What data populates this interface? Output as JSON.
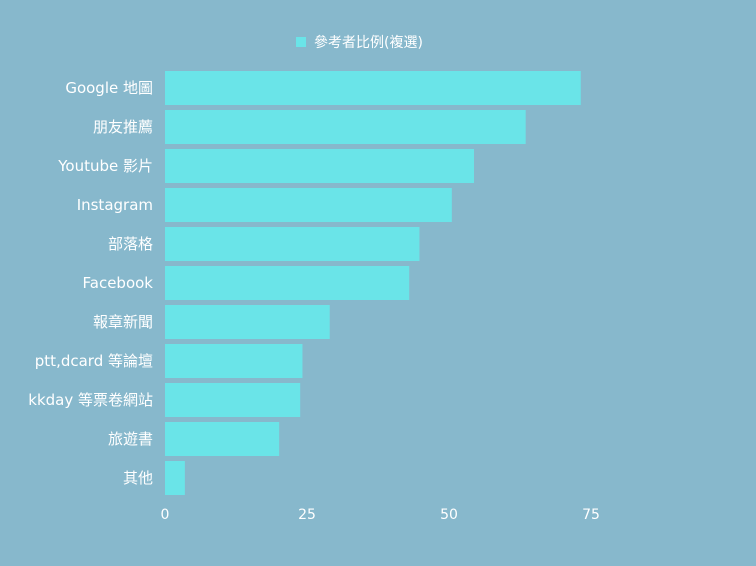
{
  "chart_data": {
    "type": "bar",
    "orientation": "horizontal",
    "categories": [
      "Google 地圖",
      "朋友推薦",
      "Youtube 影片",
      "Instagram",
      "部落格",
      "Facebook",
      "報章新聞",
      "ptt,dcard 等論壇",
      "kkday 等票卷網站",
      "旅遊書",
      "其他"
    ],
    "series": [
      {
        "name": "參考者比例(複選)",
        "values": [
          73.2,
          63.5,
          54.4,
          50.5,
          44.8,
          43.0,
          29.0,
          24.2,
          23.8,
          20.1,
          3.5
        ]
      }
    ],
    "xlim": [
      0,
      100
    ],
    "xticks": [
      "0",
      "25",
      "50",
      "75"
    ],
    "xtick_values": [
      0,
      25,
      50,
      75
    ],
    "legend_position": "top-center",
    "grid": false
  },
  "colors": {
    "background": "#87b8cc",
    "bar": "#6ae4e8",
    "text": "#ffffff"
  }
}
